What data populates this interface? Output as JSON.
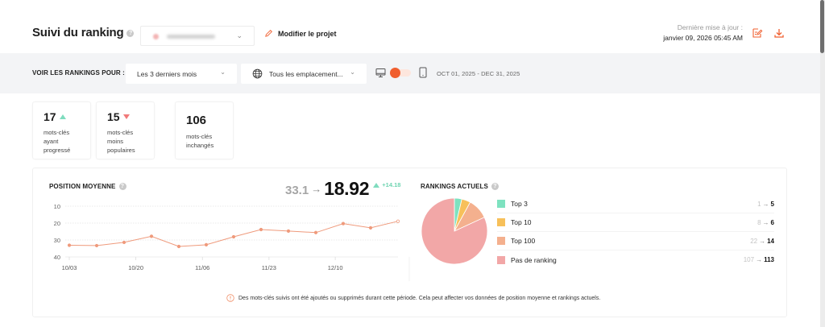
{
  "header": {
    "title": "Suivi du ranking",
    "help_icon": "question-circle-icon",
    "project_selector": {
      "value_blurred": true,
      "chevron_icon": "chevron-down-icon"
    },
    "edit_project_label": "Modifier le projet",
    "edit_icon": "pencil-icon",
    "last_update_label": "Dernière mise à jour :",
    "last_update_value": "janvier 09, 2026 05:45 AM",
    "actions": [
      {
        "name": "report-edit-icon"
      },
      {
        "name": "download-icon"
      }
    ]
  },
  "filters": {
    "label": "VOIR LES RANKINGS POUR :",
    "period": "Les 3 derniers mois",
    "location": "Tous les emplacement...",
    "location_icon": "globe-icon",
    "device_desktop_icon": "monitor-icon",
    "device_mobile_icon": "smartphone-icon",
    "device_toggle_selected": "desktop",
    "date_range": "OCT 01, 2025 - DEC 31, 2025"
  },
  "stats": [
    {
      "value": "17",
      "trend": "up",
      "label_lines": [
        "mots-clés",
        "ayant",
        "progressé"
      ]
    },
    {
      "value": "15",
      "trend": "down",
      "label_lines": [
        "mots-clés",
        "moins",
        "populaires"
      ]
    },
    {
      "value": "106",
      "trend": "none",
      "label_lines": [
        "mots-clés",
        "inchangés"
      ]
    }
  ],
  "position_moyenne": {
    "title": "POSITION MOYENNE",
    "old_value": "33.1",
    "arrow": "→",
    "new_value": "18.92",
    "delta": "+14.18"
  },
  "rankings_actuels": {
    "title": "RANKINGS ACTUELS",
    "rows": [
      {
        "label": "Top 3",
        "old": "1",
        "new": "5",
        "color": "#7ee2c0"
      },
      {
        "label": "Top 10",
        "old": "8",
        "new": "6",
        "color": "#f7c05a"
      },
      {
        "label": "Top 100",
        "old": "22",
        "new": "14",
        "color": "#f4b08e"
      },
      {
        "label": "Pas de ranking",
        "old": "107",
        "new": "113",
        "color": "#f2a7a7"
      }
    ]
  },
  "notice": {
    "icon": "info-circle-icon",
    "text": "Des mots-clés suivis ont été ajoutés ou supprimés durant cette période. Cela peut affecter vos données de position moyenne et rankings actuels."
  },
  "colors": {
    "accent": "#f05f2f",
    "line": "#ef9a7c",
    "up": "#7fdcbe",
    "down": "#f17a7a",
    "filterbar_bg": "#f3f4f6"
  },
  "chart_data": [
    {
      "type": "line",
      "title": "POSITION MOYENNE",
      "xlabel": "",
      "ylabel": "",
      "y_inverted": true,
      "ylim": [
        10,
        40
      ],
      "y_ticks": [
        10,
        20,
        30,
        40
      ],
      "x_tick_labels": [
        "10/03",
        "10/20",
        "11/06",
        "11/23",
        "12/10"
      ],
      "grid": true,
      "series": [
        {
          "name": "Position moyenne",
          "color": "#ef9a7c",
          "x": [
            "10/03",
            "10/10",
            "10/17",
            "10/24",
            "10/31",
            "11/07",
            "11/14",
            "11/21",
            "11/28",
            "12/05",
            "12/12",
            "12/19",
            "12/26"
          ],
          "values": [
            33.1,
            33.3,
            31.4,
            27.8,
            33.8,
            32.8,
            28.1,
            23.8,
            24.7,
            25.6,
            20.3,
            22.8,
            18.92
          ]
        }
      ]
    },
    {
      "type": "pie",
      "title": "RANKINGS ACTUELS",
      "categories": [
        "Top 3",
        "Top 10",
        "Top 100",
        "Pas de ranking"
      ],
      "values": [
        5,
        6,
        14,
        113
      ],
      "colors": [
        "#7ee2c0",
        "#f7c05a",
        "#f4b08e",
        "#f2a7a7"
      ],
      "legend_position": "right"
    }
  ]
}
